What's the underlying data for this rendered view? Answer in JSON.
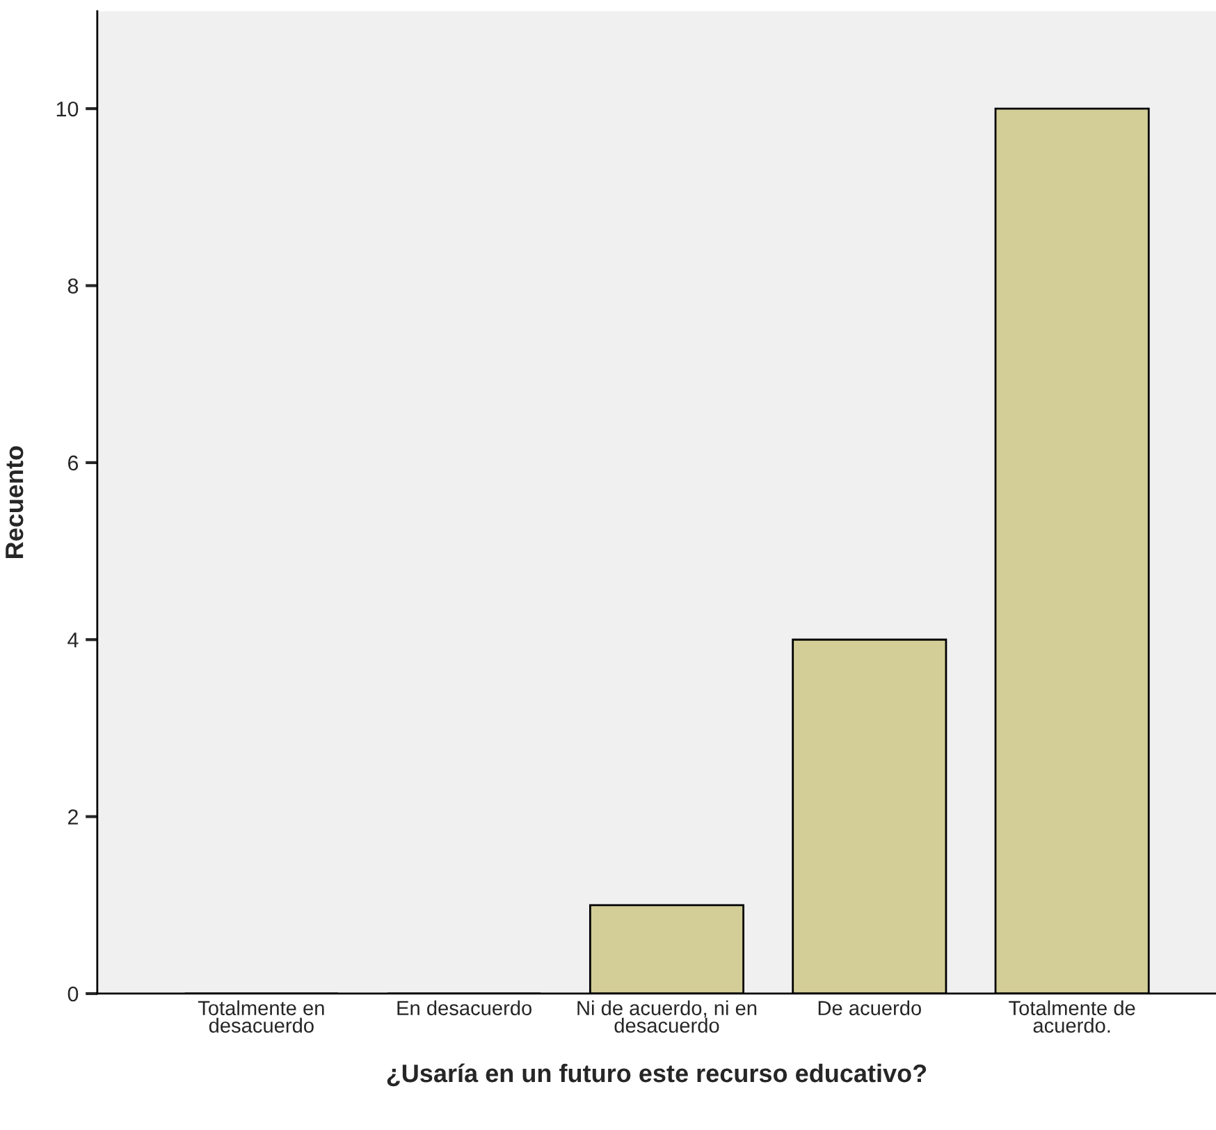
{
  "chart_data": {
    "type": "bar",
    "xlabel": "¿Usaría en un futuro este recurso educativo?",
    "ylabel": "Recuento",
    "categories": [
      "Totalmente en\ndesacuerdo",
      "En desacuerdo",
      "Ni de acuerdo, ni en\ndesacuerdo",
      "De acuerdo",
      "Totalmente de\nacuerdo."
    ],
    "values": [
      0,
      0,
      1,
      4,
      10
    ],
    "color": "#d3ce97",
    "ylim": [
      0,
      11.1
    ],
    "yticks": [
      0,
      2,
      4,
      6,
      8,
      10
    ],
    "grid": false,
    "legend": false
  }
}
